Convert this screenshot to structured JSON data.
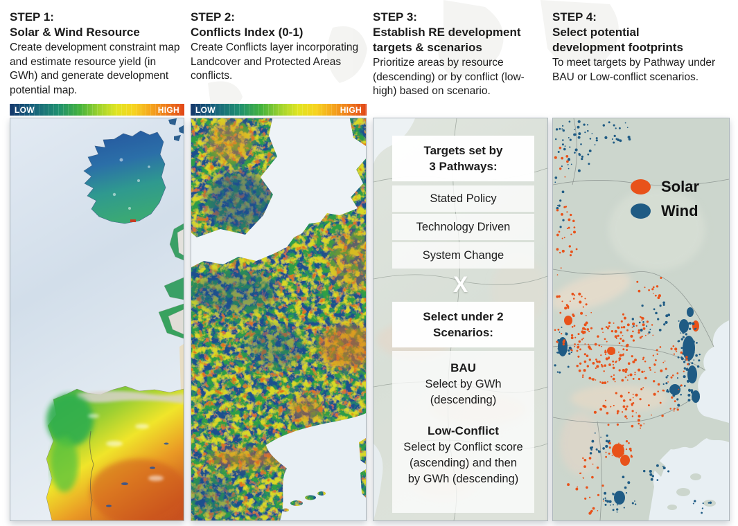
{
  "figure": {
    "steps": [
      {
        "label": "STEP 1:",
        "title_lines": [
          "Solar & Wind Resource"
        ],
        "description": "Create development constraint map and estimate resource yield (in GWh) and generate development potential map.",
        "colorbar": {
          "low": "LOW",
          "high": "HIGH"
        }
      },
      {
        "label": "STEP 2:",
        "title_lines": [
          "Conflicts Index (0-1)"
        ],
        "description": "Create Conflicts layer incorporating Landcover and Protected Areas conflicts.",
        "colorbar": {
          "low": "LOW",
          "high": "HIGH"
        }
      },
      {
        "label": "STEP 3:",
        "title_lines": [
          "Establish RE development",
          "targets & scenarios"
        ],
        "description": "Prioritize areas by resource (descending) or by conflict (low-high) based on scenario."
      },
      {
        "label": "STEP 4:",
        "title_lines": [
          "Select potential",
          "development footprints"
        ],
        "description": "To meet targets by Pathway under BAU or Low-conflict scenarios."
      }
    ],
    "step3_panel": {
      "pathways_header_lines": [
        "Targets set by",
        "3 Pathways:"
      ],
      "pathways": [
        "Stated Policy",
        "Technology Driven",
        "System Change"
      ],
      "cross": "X",
      "scenarios_header_lines": [
        "Select under 2",
        "Scenarios:"
      ],
      "scenarios": [
        {
          "name": "BAU",
          "detail": "Select by GWh (descending)"
        },
        {
          "name": "Low-Conflict",
          "detail": "Select by Conflict score (ascending) and then by GWh (descending)"
        }
      ]
    },
    "step4_legend": [
      {
        "label": "Solar",
        "color": "#e8521a"
      },
      {
        "label": "Wind",
        "color": "#1f5b84"
      }
    ],
    "colors": {
      "solar": "#e8521a",
      "wind": "#1f5b84",
      "colorbar_start": "#15386b",
      "colorbar_end": "#e14617",
      "text": "#1b1b1b"
    }
  }
}
